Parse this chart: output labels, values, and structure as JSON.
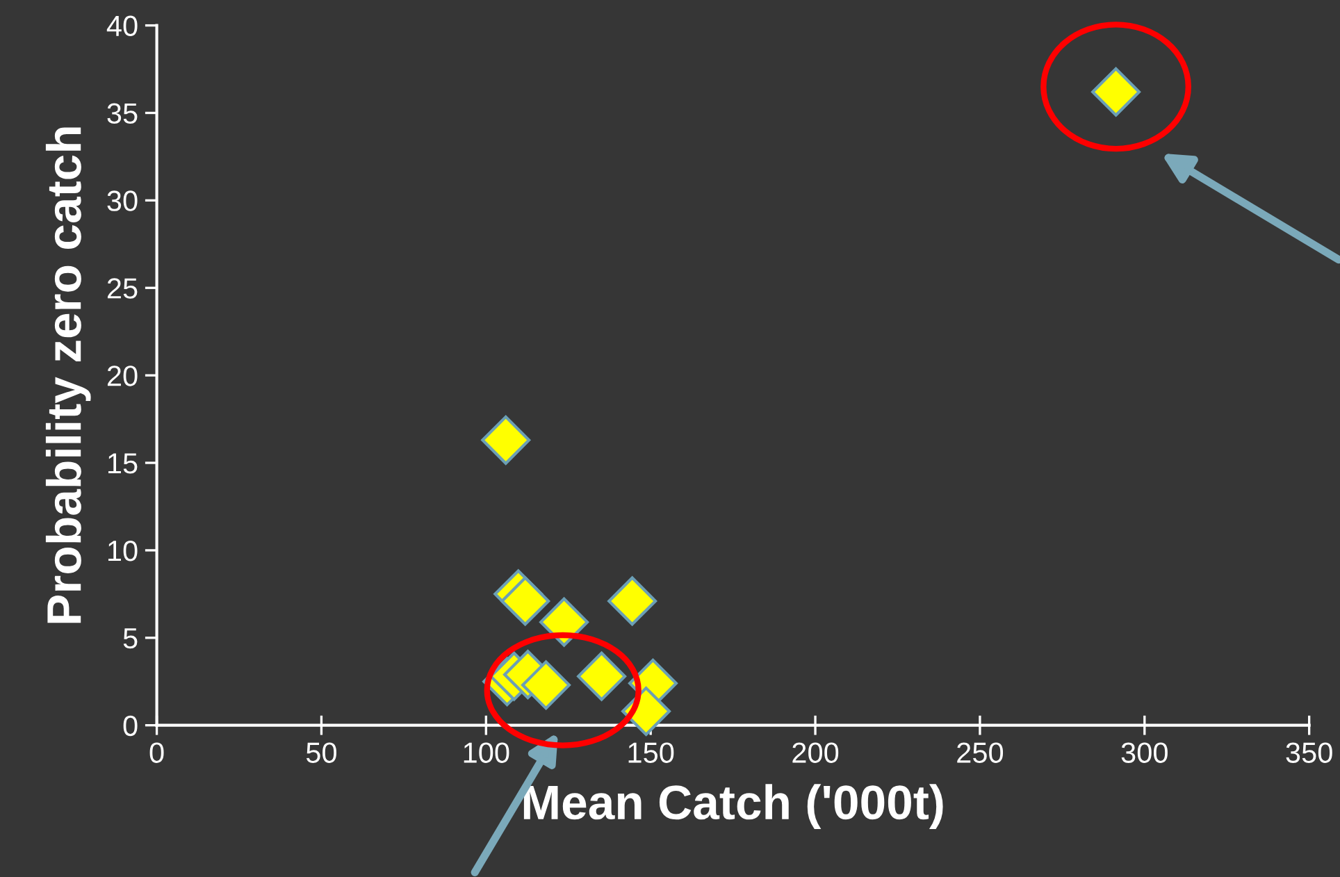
{
  "chart_data": {
    "type": "scatter",
    "xlabel": "Mean Catch ('000t)",
    "ylabel": "Probability zero catch",
    "x": [
      106,
      109.8,
      111.9,
      123.7,
      144.4,
      106.4,
      108.5,
      112.7,
      118.2,
      135.1,
      150.7,
      148.6,
      291.3
    ],
    "values": [
      16.3,
      7.5,
      7.1,
      5.9,
      7.1,
      2.5,
      2.8,
      2.9,
      2.3,
      2.8,
      2.4,
      0.8,
      36.2
    ],
    "color": "#ffff00",
    "marker": "diamond",
    "xlim": [
      0,
      350
    ],
    "xticks": [
      0,
      50,
      100,
      150,
      200,
      250,
      300,
      350
    ],
    "ylim": [
      0,
      40
    ],
    "yticks": [
      0,
      5,
      10,
      15,
      20,
      25,
      30,
      35,
      40
    ],
    "grid": false,
    "legend": false
  }
}
